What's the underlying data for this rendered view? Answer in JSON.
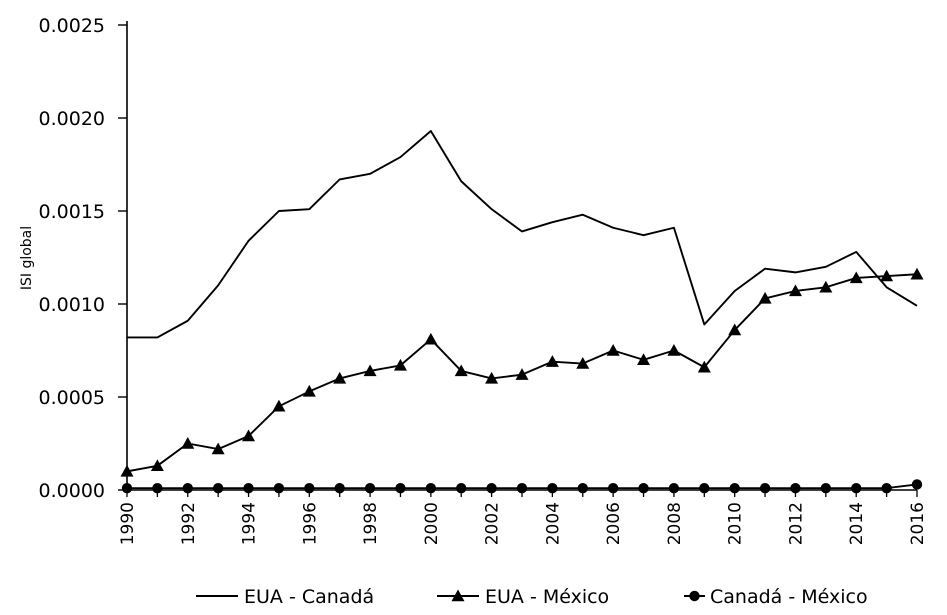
{
  "chart_data": {
    "type": "line",
    "title": "",
    "xlabel": "",
    "ylabel": "ISI global",
    "ylim": [
      0,
      0.0025
    ],
    "xlim": [
      1990,
      2016
    ],
    "yticks": [
      "0.0000",
      "0.0005",
      "0.0010",
      "0.0015",
      "0.0020",
      "0.0025"
    ],
    "ytick_values": [
      0,
      0.0005,
      0.001,
      0.0015,
      0.002,
      0.0025
    ],
    "xticks": [
      "1990",
      "1992",
      "1994",
      "1996",
      "1998",
      "2000",
      "2002",
      "2004",
      "2006",
      "2008",
      "2010",
      "2012",
      "2014",
      "2016"
    ],
    "xtick_values": [
      1990,
      1992,
      1994,
      1996,
      1998,
      2000,
      2002,
      2004,
      2006,
      2008,
      2010,
      2012,
      2014,
      2016
    ],
    "x": [
      1990,
      1991,
      1992,
      1993,
      1994,
      1995,
      1996,
      1997,
      1998,
      1999,
      2000,
      2001,
      2002,
      2003,
      2004,
      2005,
      2006,
      2007,
      2008,
      2009,
      2010,
      2011,
      2012,
      2013,
      2014,
      2015,
      2016
    ],
    "grid": false,
    "legend_position": "bottom",
    "series": [
      {
        "name": "EUA - Canadá",
        "marker": "none",
        "values": [
          0.00082,
          0.00082,
          0.00091,
          0.0011,
          0.00134,
          0.0015,
          0.00151,
          0.00167,
          0.0017,
          0.00179,
          0.00193,
          0.00166,
          0.00151,
          0.00139,
          0.00144,
          0.00148,
          0.00141,
          0.00137,
          0.00141,
          0.00089,
          0.00107,
          0.00119,
          0.00117,
          0.0012,
          0.00128,
          0.00109,
          0.00099
        ]
      },
      {
        "name": "EUA - México",
        "marker": "triangle",
        "values": [
          0.0001,
          0.00013,
          0.00025,
          0.00022,
          0.00029,
          0.00045,
          0.00053,
          0.0006,
          0.00064,
          0.00067,
          0.00081,
          0.00064,
          0.0006,
          0.00062,
          0.00069,
          0.00068,
          0.00075,
          0.0007,
          0.00075,
          0.00066,
          0.00086,
          0.00103,
          0.00107,
          0.00109,
          0.00114,
          0.00115,
          0.00116
        ]
      },
      {
        "name": "Canadá - México",
        "marker": "circle",
        "values": [
          1e-05,
          1e-05,
          1e-05,
          1e-05,
          1e-05,
          1e-05,
          1e-05,
          1e-05,
          1e-05,
          1e-05,
          1e-05,
          1e-05,
          1e-05,
          1e-05,
          1e-05,
          1e-05,
          1e-05,
          1e-05,
          1e-05,
          1e-05,
          1e-05,
          1e-05,
          1e-05,
          1e-05,
          1e-05,
          1e-05,
          3e-05
        ]
      }
    ]
  }
}
